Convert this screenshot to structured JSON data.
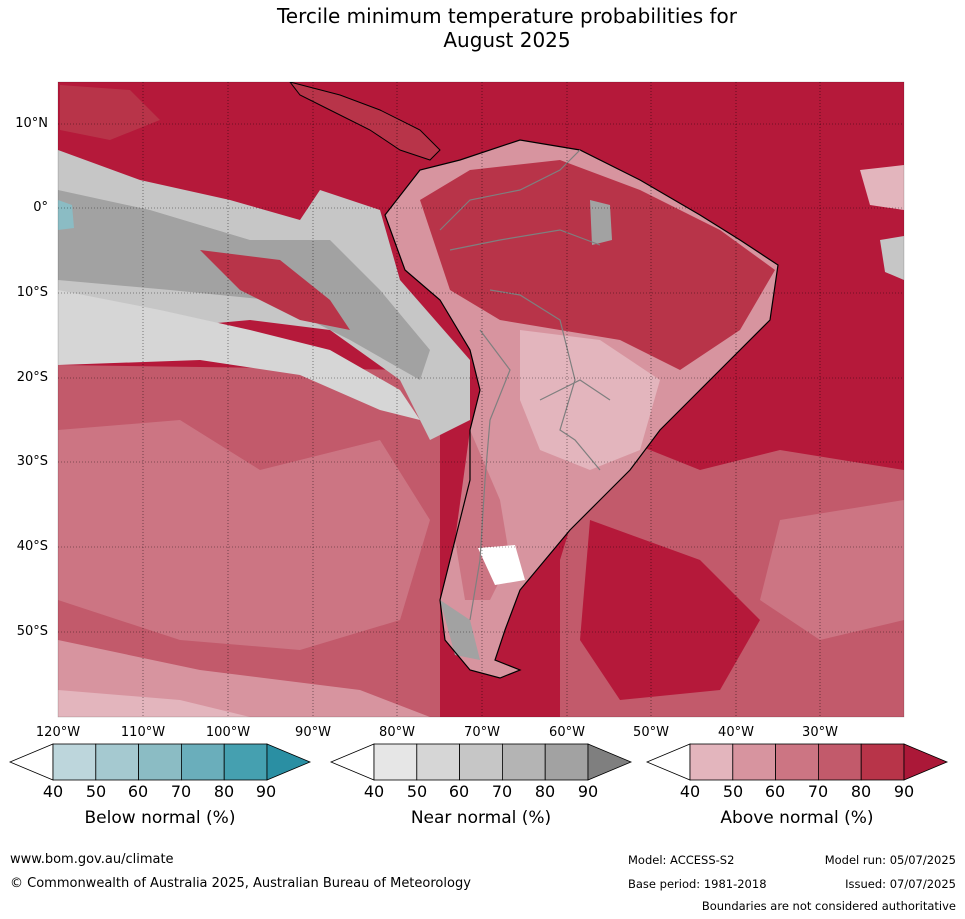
{
  "title_line1": "Tercile minimum temperature probabilities for",
  "title_line2": "August 2025",
  "lat_labels": [
    "10°N",
    "0°",
    "10°S",
    "20°S",
    "30°S",
    "40°S",
    "50°S"
  ],
  "lon_labels": [
    "120°W",
    "110°W",
    "100°W",
    "90°W",
    "80°W",
    "70°W",
    "60°W",
    "50°W",
    "40°W",
    "30°W"
  ],
  "legend": {
    "ticks": [
      "40",
      "50",
      "60",
      "70",
      "80",
      "90"
    ],
    "below": {
      "label": "Below normal (%)",
      "colors": [
        "#ffffff",
        "#bdd6dc",
        "#a5c9d0",
        "#8bbcc4",
        "#6aaebb",
        "#45a0b0",
        "#2a8fa3"
      ]
    },
    "near": {
      "label": "Near normal (%)",
      "colors": [
        "#ffffff",
        "#e6e6e6",
        "#d6d6d6",
        "#c6c6c6",
        "#b4b4b4",
        "#a2a2a2",
        "#7f7f7f"
      ]
    },
    "above": {
      "label": "Above normal (%)",
      "colors": [
        "#ffffff",
        "#e3b5bd",
        "#d7949f",
        "#cc7583",
        "#c25a6b",
        "#b83449",
        "#ab1838"
      ]
    }
  },
  "footer": {
    "site": "www.bom.gov.au/climate",
    "copyright": "© Commonwealth of Australia 2025, Australian Bureau of Meteorology",
    "model": "Model: ACCESS-S2",
    "base_period": "Base period: 1981-2018",
    "model_run": "Model run: 05/07/2025",
    "issued": "Issued: 07/07/2025",
    "disclaimer": "Boundaries are not considered authoritative"
  }
}
